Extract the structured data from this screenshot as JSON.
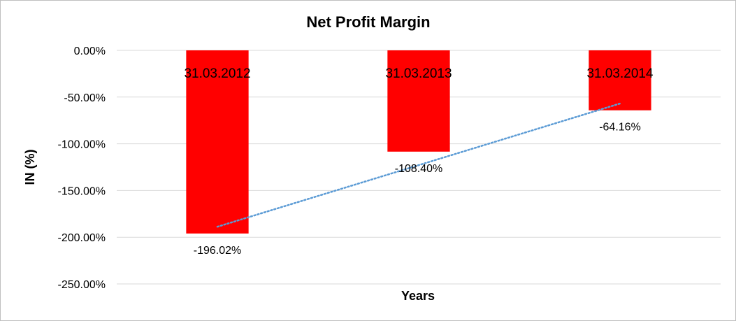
{
  "chart_data": {
    "type": "bar",
    "title": "Net Profit Margin",
    "xlabel": "Years",
    "ylabel": "IN (%)",
    "categories": [
      "31.03.2012",
      "31.03.2013",
      "31.03.2014"
    ],
    "series": [
      {
        "values": [
          -196.02,
          -108.4,
          -64.16
        ],
        "data_labels": [
          "-196.02%",
          "-108.40%",
          "-64.16%"
        ],
        "color": "#ff0000"
      }
    ],
    "trendline": {
      "type": "linear",
      "style": "dotted",
      "color": "#5b9bd5"
    },
    "ylim": [
      -250,
      0
    ],
    "yticks": [
      0,
      -50,
      -100,
      -150,
      -200,
      -250
    ],
    "ytick_labels": [
      "0.00%",
      "-50.00%",
      "-100.00%",
      "-150.00%",
      "-200.00%",
      "-250.00%"
    ],
    "grid": true,
    "gridline_color": "#d9d9d9",
    "legend": "none"
  }
}
